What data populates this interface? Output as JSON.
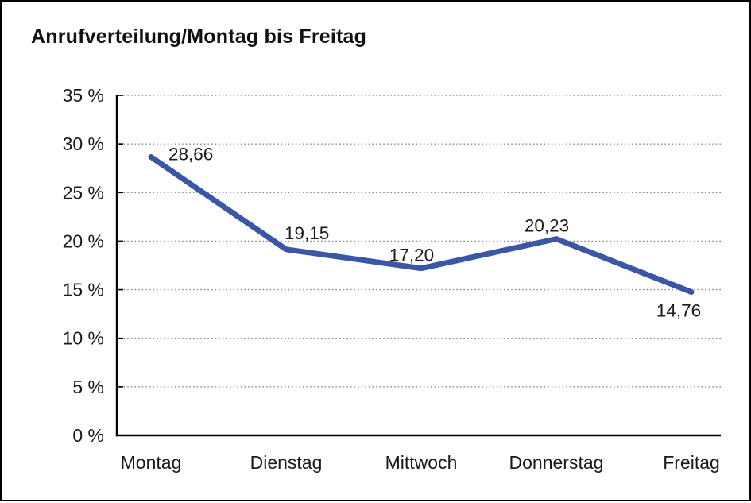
{
  "title": "Anrufverteilung/Montag bis Freitag",
  "chart_data": {
    "type": "line",
    "title": "Anrufverteilung/Montag bis Freitag",
    "categories": [
      "Montag",
      "Dienstag",
      "Mittwoch",
      "Donnerstag",
      "Freitag"
    ],
    "values": [
      28.66,
      19.15,
      17.2,
      20.23,
      14.76
    ],
    "data_labels": [
      "28,66",
      "19,15",
      "17,20",
      "20,23",
      "14,76"
    ],
    "xlabel": "",
    "ylabel": "",
    "ylim": [
      0,
      35
    ],
    "ytick_step": 5,
    "ytick_labels": [
      "0 %",
      "5 %",
      "10 %",
      "15 %",
      "20 %",
      "25 %",
      "30 %",
      "35 %"
    ],
    "grid": "horizontal-dotted",
    "legend": "none",
    "colors": {
      "line": "#3A57A5",
      "axis": "#000000",
      "gridline": "#8a8a8a",
      "text": "#1a1a1a"
    }
  }
}
